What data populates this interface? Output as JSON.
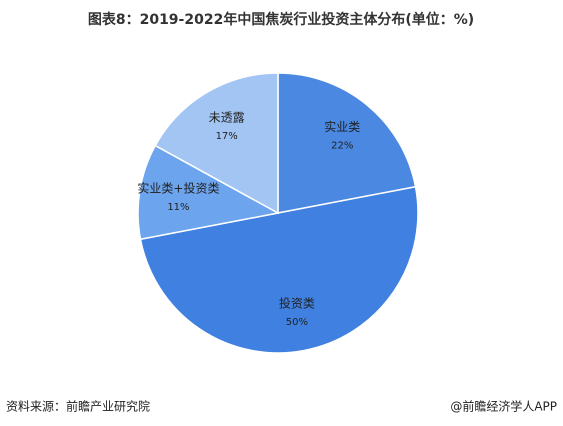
{
  "chart_data": {
    "type": "pie",
    "title": "图表8：2019-2022年中国焦炭行业投资主体分布(单位：%)",
    "categories": [
      "实业类",
      "投资类",
      "实业类+投资类",
      "未透露"
    ],
    "values": [
      22,
      50,
      11,
      17
    ],
    "value_labels": [
      "22%",
      "50%",
      "11%",
      "17%"
    ],
    "colors": [
      "#4a88e2",
      "#3f80e0",
      "#6ca4ee",
      "#a3c5f3"
    ],
    "source": "资料来源：前瞻产业研究院",
    "credit": "@前瞻经济学人APP"
  }
}
